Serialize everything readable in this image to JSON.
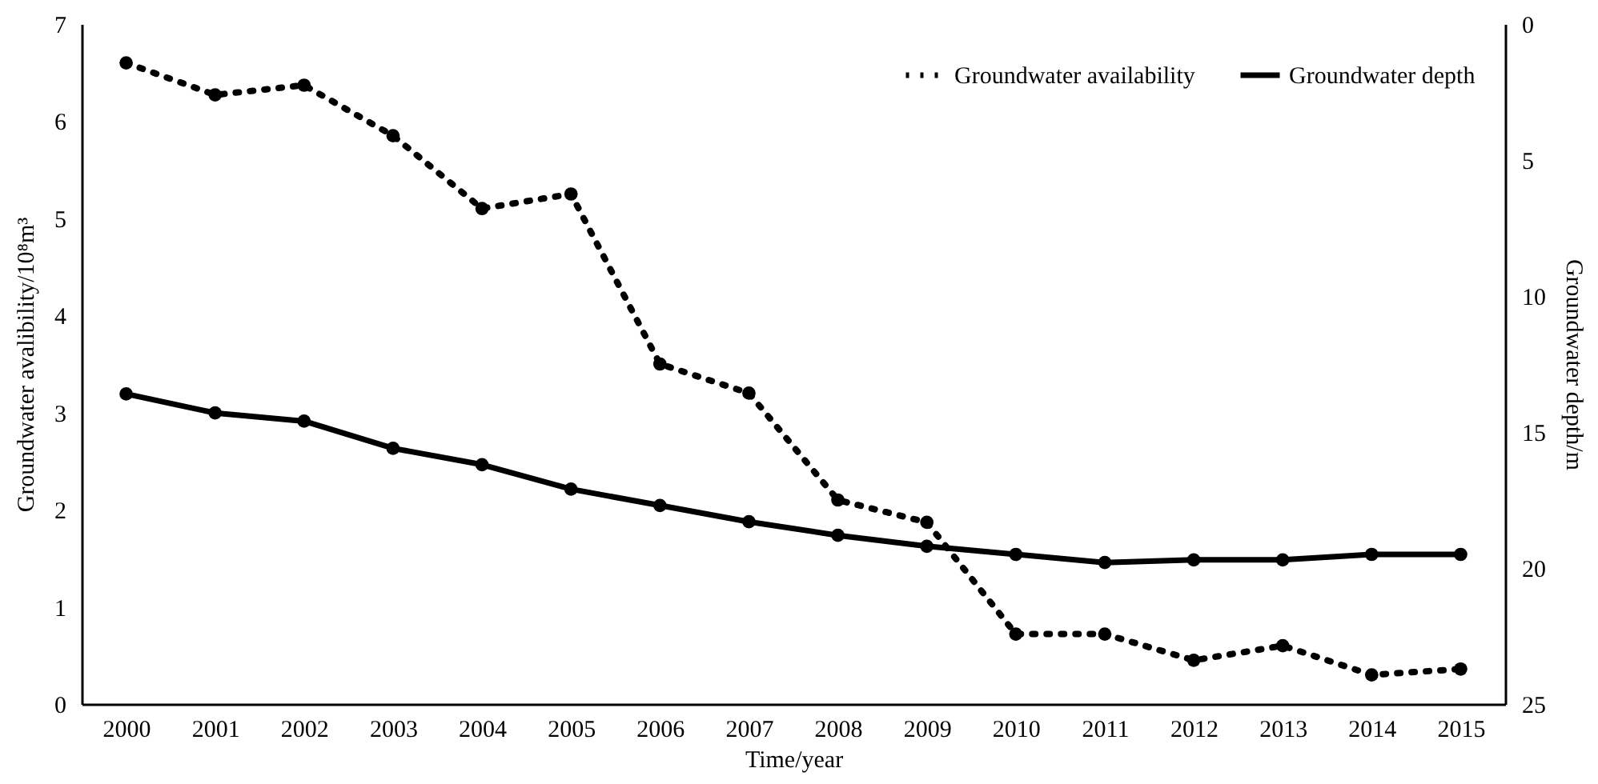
{
  "chart_data": {
    "type": "line",
    "xlabel": "Time/year",
    "ylabel": "Groundwater avalibility/10⁸m³",
    "y2label": "Groundwater depth/m",
    "categories": [
      "2000",
      "2001",
      "2002",
      "2003",
      "2004",
      "2005",
      "2006",
      "2007",
      "2008",
      "2009",
      "2010",
      "2011",
      "2012",
      "2013",
      "2014",
      "2015"
    ],
    "series": [
      {
        "name": "Groundwater availability",
        "color": "#000000",
        "line_style": "dotted",
        "axis": "y",
        "values": [
          6.6,
          6.27,
          6.37,
          5.85,
          5.1,
          5.25,
          3.5,
          3.2,
          2.1,
          1.87,
          0.72,
          0.72,
          0.45,
          0.6,
          0.3,
          0.36
        ]
      },
      {
        "name": "Groundwater depth",
        "color": "#000000",
        "line_style": "solid",
        "axis": "y2",
        "values": [
          13.6,
          14.3,
          14.6,
          15.6,
          16.2,
          17.1,
          17.7,
          18.3,
          18.8,
          19.2,
          19.5,
          19.8,
          19.7,
          19.7,
          19.5,
          19.5
        ]
      }
    ],
    "ylim": [
      0,
      7
    ],
    "yticks": [
      0,
      1,
      2,
      3,
      4,
      5,
      6,
      7
    ],
    "y2lim": [
      25,
      0
    ],
    "y2ticks": [
      0,
      5,
      10,
      15,
      20,
      25
    ],
    "marker": "circle",
    "legend": "top right",
    "grid": false
  }
}
